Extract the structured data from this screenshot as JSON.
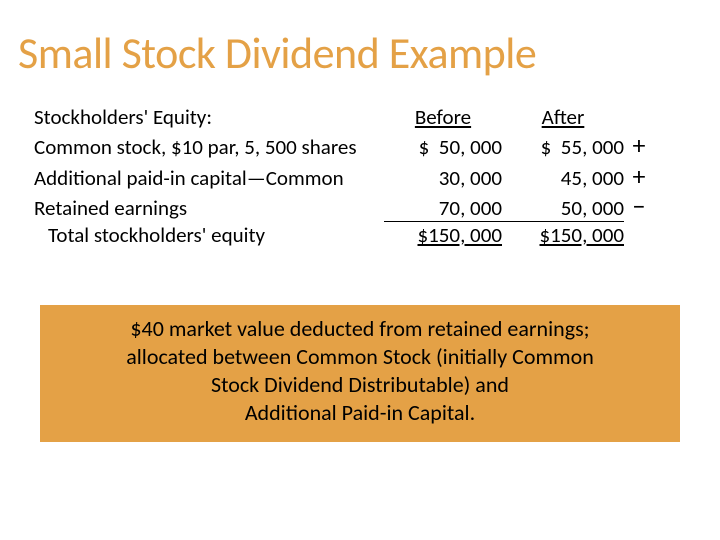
{
  "colors": {
    "accent": "#e4a146",
    "background": "#ffffff",
    "text": "#000000"
  },
  "title": "Small Stock Dividend Example",
  "table": {
    "header_label": "Stockholders' Equity:",
    "col_before": "Before",
    "col_after": "After",
    "rows": [
      {
        "label": "Common stock, $10 par, 5, 500 shares",
        "before": "$  50, 000",
        "after": "$  55, 000",
        "symbol": "+"
      },
      {
        "label": "Additional paid-in capital—Common",
        "before": "30, 000",
        "after": "45, 000",
        "symbol": "+"
      },
      {
        "label": "Retained earnings",
        "before": "70, 000",
        "after": "50, 000",
        "symbol": "−"
      }
    ],
    "total": {
      "label": "Total stockholders' equity",
      "before": "$150, 000",
      "after": "$150, 000"
    }
  },
  "callout": {
    "line1": "$40 market value deducted from retained earnings;",
    "line2": "allocated between Common Stock (initially Common",
    "line3": "Stock Dividend Distributable) and",
    "line4": "Additional Paid-in Capital."
  },
  "typography": {
    "title_fontsize": 44,
    "body_fontsize": 21,
    "callout_fontsize": 22
  }
}
